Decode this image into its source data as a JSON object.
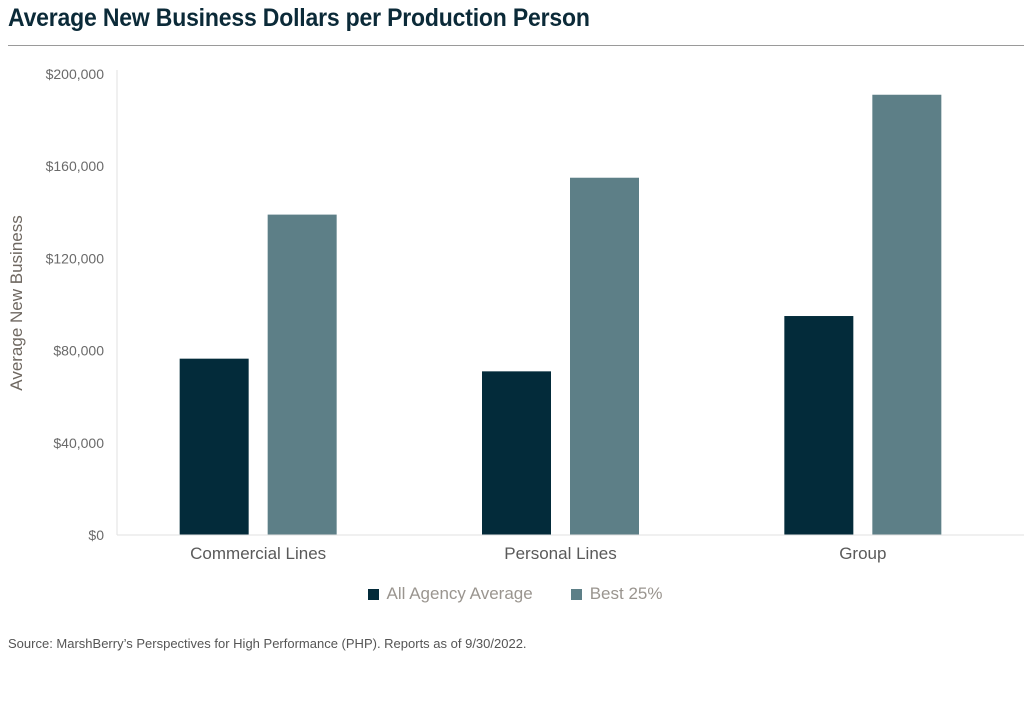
{
  "chart_data": {
    "type": "bar",
    "title": "Average New Business Dollars per Production Person",
    "ylabel": "Average New Business",
    "xlabel": "",
    "categories": [
      "Commercial Lines",
      "Personal Lines",
      "Group"
    ],
    "series": [
      {
        "name": "All Agency Average",
        "color": "#032b3a",
        "values": [
          76500,
          71000,
          95000
        ]
      },
      {
        "name": "Best 25%",
        "color": "#5d7f87",
        "values": [
          139000,
          155000,
          191000
        ]
      }
    ],
    "ylim": [
      0,
      200000
    ],
    "yticks": [
      0,
      40000,
      80000,
      120000,
      160000,
      200000
    ],
    "ytick_labels": [
      "$0",
      "$40,000",
      "$80,000",
      "$120,000",
      "$160,000",
      "$200,000"
    ],
    "grid": false,
    "legend_position": "bottom-center"
  },
  "source": "Source: MarshBerry’s Perspectives for High Performance (PHP). Reports as of 9/30/2022."
}
